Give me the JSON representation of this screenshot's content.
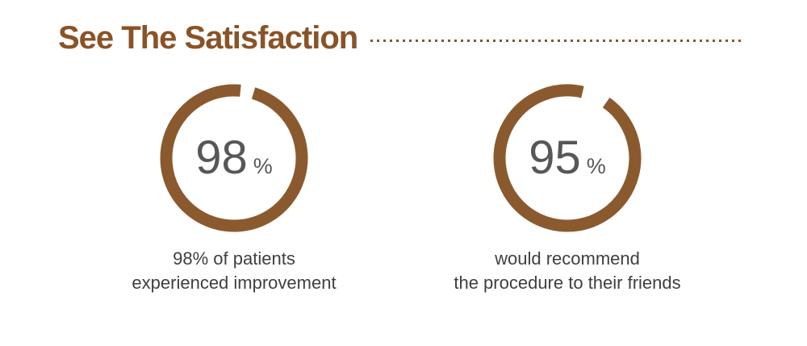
{
  "header": {
    "title": "See The Satisfaction"
  },
  "colors": {
    "background": "#ffffff",
    "heading_brown": "#8a5327",
    "ring_brown": "#8a5a2e",
    "number_gray": "#57575a",
    "caption_gray": "#3f3f3f"
  },
  "chart_data": [
    {
      "type": "donut",
      "value": 98,
      "unit": "%",
      "max": 100,
      "ring_color": "#8a5a2e",
      "caption_line1": "98% of patients",
      "caption_line2": "experienced improvement"
    },
    {
      "type": "donut",
      "value": 95,
      "unit": "%",
      "max": 100,
      "ring_color": "#8a5a2e",
      "caption_line1": "would recommend",
      "caption_line2": "the procedure to their friends"
    }
  ]
}
